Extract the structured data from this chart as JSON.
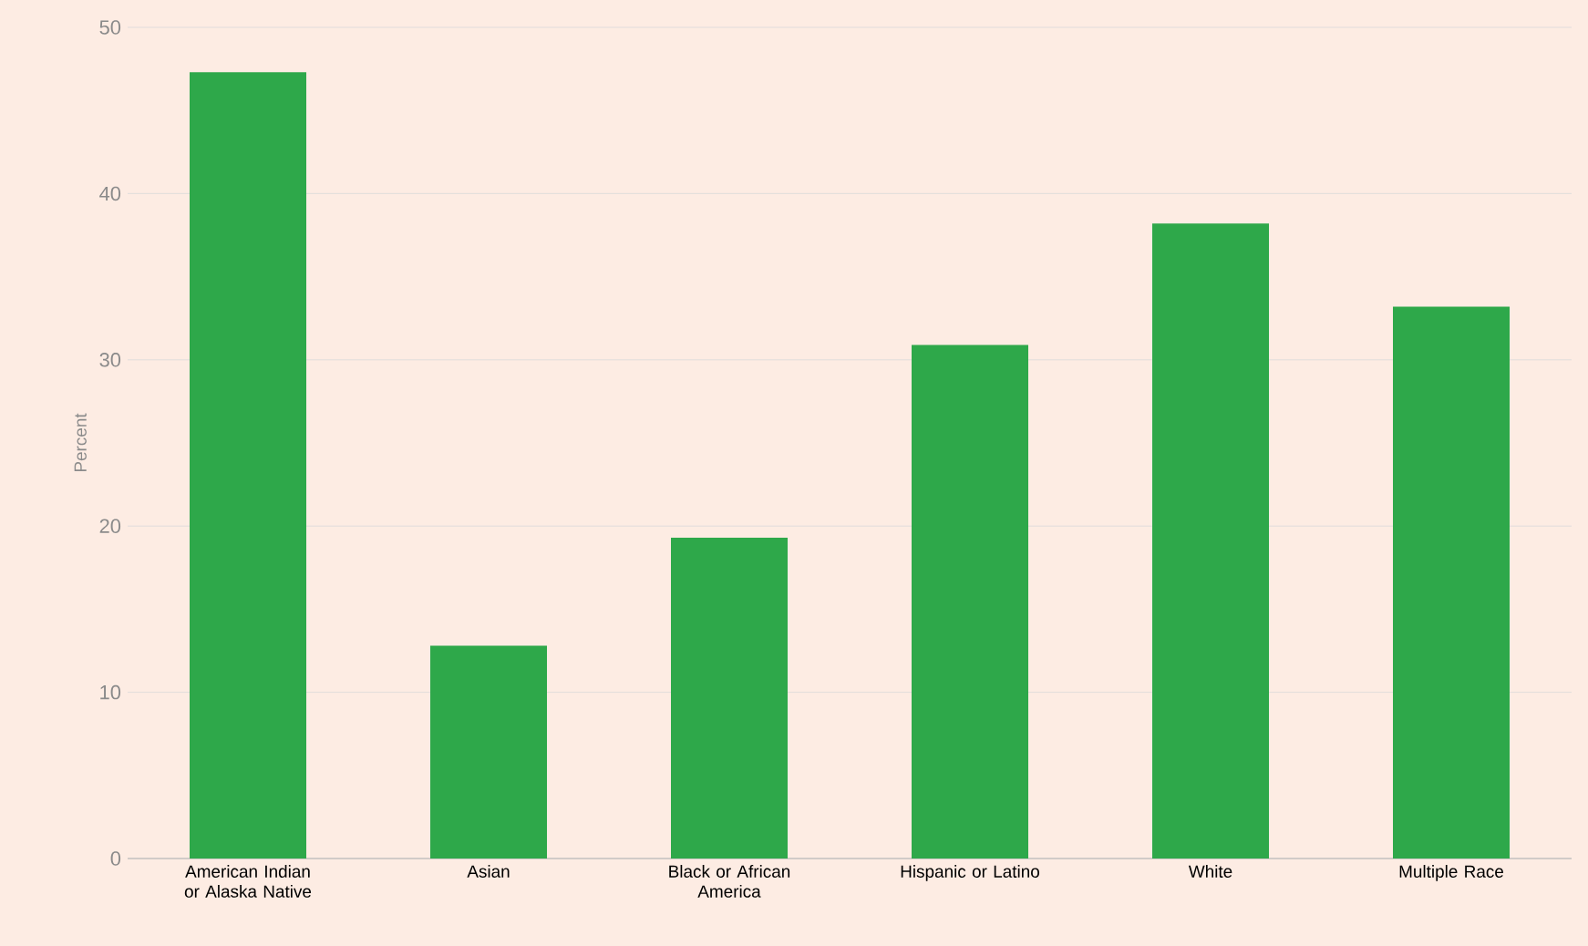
{
  "chart_data": {
    "type": "bar",
    "ylabel": "Percent",
    "categories": [
      "American Indian or Alaska Native",
      "Asian",
      "Black or African America",
      "Hispanic or Latino",
      "White",
      "Multiple Race"
    ],
    "values": [
      47.3,
      12.8,
      19.3,
      30.9,
      38.2,
      33.2
    ],
    "color": "#2ea84a",
    "ylim": [
      0,
      50
    ],
    "yticks": [
      0,
      10,
      20,
      30,
      40,
      50
    ],
    "grid": "y"
  }
}
